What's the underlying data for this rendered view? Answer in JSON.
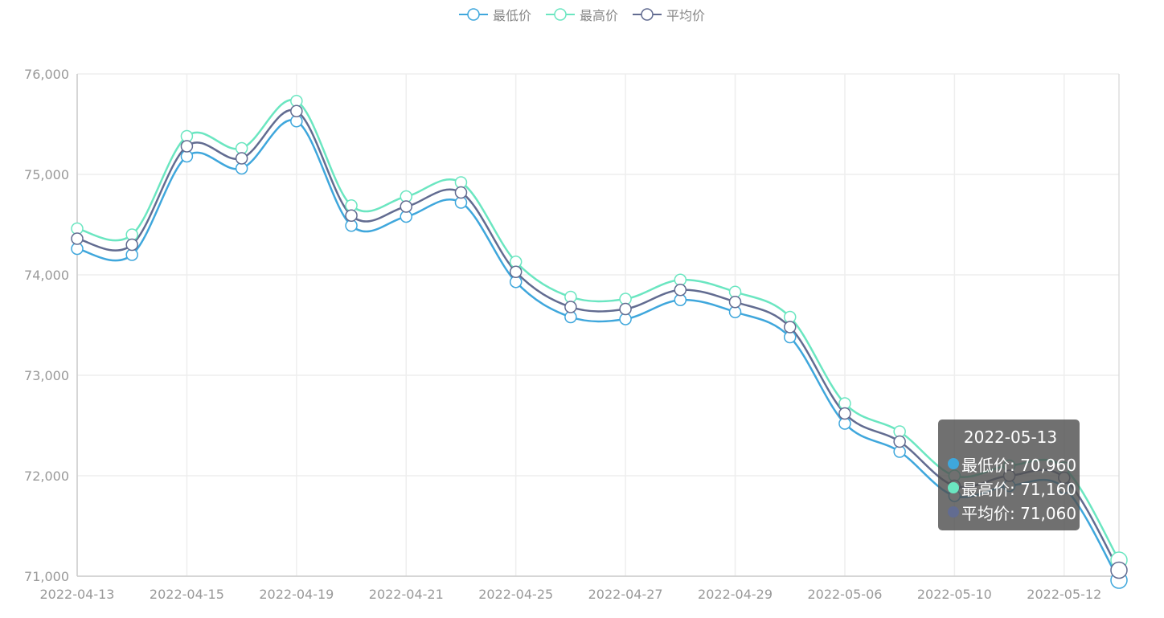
{
  "legend": [
    {
      "name": "最低价",
      "color": "#3fa7dc"
    },
    {
      "name": "最高价",
      "color": "#6be6c1"
    },
    {
      "name": "平均价",
      "color": "#626c91"
    }
  ],
  "tooltip": {
    "title": "2022-05-13",
    "rows": [
      {
        "label": "最低价: 70,960",
        "color": "#3fa7dc"
      },
      {
        "label": "最高价: 71,160",
        "color": "#6be6c1"
      },
      {
        "label": "平均价: 71,060",
        "color": "#626c91"
      }
    ]
  },
  "chart_data": {
    "type": "line",
    "smooth": true,
    "x": [
      "2022-04-13",
      "2022-04-14",
      "2022-04-15",
      "2022-04-18",
      "2022-04-19",
      "2022-04-20",
      "2022-04-21",
      "2022-04-22",
      "2022-04-25",
      "2022-04-26",
      "2022-04-27",
      "2022-04-28",
      "2022-04-29",
      "2022-05-05",
      "2022-05-06",
      "2022-05-09",
      "2022-05-10",
      "2022-05-11",
      "2022-05-12",
      "2022-05-13"
    ],
    "x_tick_labels": [
      "2022-04-13",
      "2022-04-15",
      "2022-04-19",
      "2022-04-21",
      "2022-04-25",
      "2022-04-27",
      "2022-04-29",
      "2022-05-06",
      "2022-05-10",
      "2022-05-12"
    ],
    "y_tick_labels": [
      "71,000",
      "72,000",
      "73,000",
      "74,000",
      "75,000",
      "76,000"
    ],
    "ylim": [
      71000,
      76000
    ],
    "grid": true,
    "legend_position": "top-center",
    "series": [
      {
        "name": "最低价",
        "color": "#3fa7dc",
        "values": [
          74260,
          74200,
          75180,
          75060,
          75530,
          74490,
          74580,
          74720,
          73930,
          73580,
          73560,
          73750,
          73630,
          73380,
          72520,
          72240,
          71800,
          71900,
          71880,
          70960
        ]
      },
      {
        "name": "最高价",
        "color": "#6be6c1",
        "values": [
          74460,
          74400,
          75380,
          75260,
          75730,
          74690,
          74780,
          74920,
          74130,
          73780,
          73760,
          73950,
          73830,
          73580,
          72720,
          72440,
          72000,
          72100,
          72080,
          71160
        ]
      },
      {
        "name": "平均价",
        "color": "#626c91",
        "values": [
          74360,
          74300,
          75280,
          75160,
          75630,
          74590,
          74680,
          74820,
          74030,
          73680,
          73660,
          73850,
          73730,
          73480,
          72620,
          72340,
          71900,
          72000,
          71980,
          71060
        ]
      }
    ]
  }
}
